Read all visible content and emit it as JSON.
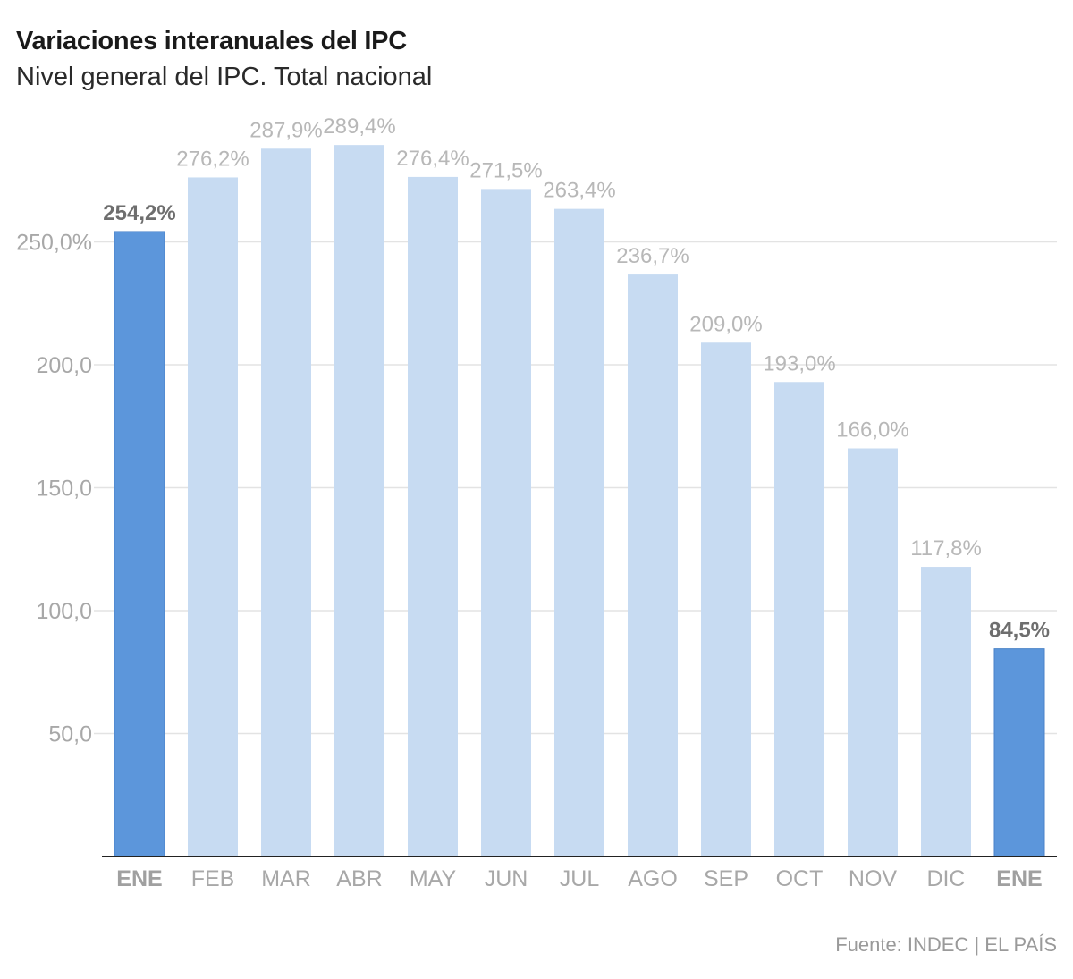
{
  "title": "Variaciones interanuales del IPC",
  "subtitle": "Nivel general del IPC. Total nacional",
  "source": "Fuente: INDEC | EL PAÍS",
  "colors": {
    "highlight_bar": "#5c96db",
    "normal_bar": "#c7dbf2",
    "highlight_label": "#6e6e6e",
    "normal_label": "#b8b8b8",
    "axis_text": "#a8a8a8",
    "grid": "#e3e3e3",
    "baseline": "#222222"
  },
  "chart_data": {
    "type": "bar",
    "categories": [
      "ENE",
      "FEB",
      "MAR",
      "ABR",
      "MAY",
      "JUN",
      "JUL",
      "AGO",
      "SEP",
      "OCT",
      "NOV",
      "DIC",
      "ENE"
    ],
    "values": [
      254.2,
      276.2,
      287.9,
      289.4,
      276.4,
      271.5,
      263.4,
      236.7,
      209.0,
      193.0,
      166.0,
      117.8,
      84.5
    ],
    "value_labels": [
      "254,2%",
      "276,2%",
      "287,9%",
      "289,4%",
      "276,4%",
      "271,5%",
      "263,4%",
      "236,7%",
      "209,0%",
      "193,0%",
      "166,0%",
      "117,8%",
      "84,5%"
    ],
    "highlighted": [
      true,
      false,
      false,
      false,
      false,
      false,
      false,
      false,
      false,
      false,
      false,
      false,
      true
    ],
    "y_ticks": [
      50,
      100,
      150,
      200,
      250
    ],
    "y_tick_labels": [
      "50,0",
      "100,0",
      "150,0",
      "200,0",
      "250,0%"
    ],
    "ylim": [
      0,
      300
    ],
    "grid": true,
    "legend": "none"
  }
}
